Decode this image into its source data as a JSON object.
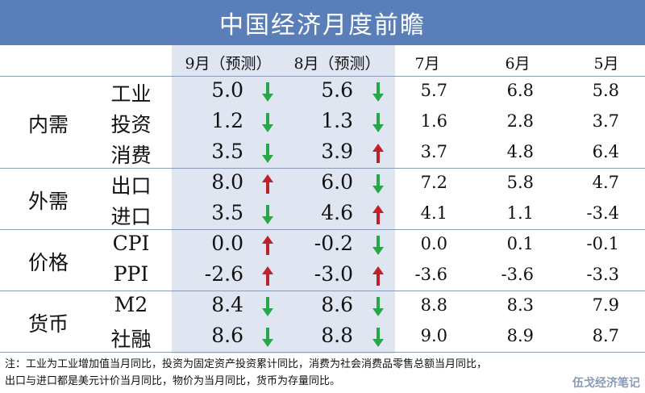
{
  "title": "中国经济月度前瞻",
  "columns": [
    "9月（预测）",
    "8月（预测）",
    "7月",
    "6月",
    "5月"
  ],
  "colors": {
    "header_bg": "#5a7fb8",
    "forecast_bg": "#dfe6f1",
    "up": "#c0202a",
    "down": "#2aa64a",
    "rule": "#8a9bb3"
  },
  "groups": [
    {
      "label": "内需",
      "rows": [
        {
          "name": "工业",
          "sep": "5.0",
          "sep_trend": "down",
          "aug": "5.6",
          "aug_trend": "down",
          "jul": "5.7",
          "jun": "6.8",
          "may": "5.8"
        },
        {
          "name": "投资",
          "sep": "1.2",
          "sep_trend": "down",
          "aug": "1.3",
          "aug_trend": "down",
          "jul": "1.6",
          "jun": "2.8",
          "may": "3.7"
        },
        {
          "name": "消费",
          "sep": "3.5",
          "sep_trend": "down",
          "aug": "3.9",
          "aug_trend": "up",
          "jul": "3.7",
          "jun": "4.8",
          "may": "6.4"
        }
      ]
    },
    {
      "label": "外需",
      "rows": [
        {
          "name": "出口",
          "sep": "8.0",
          "sep_trend": "up",
          "aug": "6.0",
          "aug_trend": "down",
          "jul": "7.2",
          "jun": "5.8",
          "may": "4.7"
        },
        {
          "name": "进口",
          "sep": "3.5",
          "sep_trend": "down",
          "aug": "4.6",
          "aug_trend": "up",
          "jul": "4.1",
          "jun": "1.1",
          "may": "-3.4"
        }
      ]
    },
    {
      "label": "价格",
      "rows": [
        {
          "name": "CPI",
          "sep": "0.0",
          "sep_trend": "up",
          "aug": "-0.2",
          "aug_trend": "down",
          "jul": "0.0",
          "jun": "0.1",
          "may": "-0.1"
        },
        {
          "name": "PPI",
          "sep": "-2.6",
          "sep_trend": "up",
          "aug": "-3.0",
          "aug_trend": "up",
          "jul": "-3.6",
          "jun": "-3.6",
          "may": "-3.3"
        }
      ]
    },
    {
      "label": "货币",
      "rows": [
        {
          "name": "M2",
          "sep": "8.4",
          "sep_trend": "down",
          "aug": "8.6",
          "aug_trend": "down",
          "jul": "8.8",
          "jun": "8.3",
          "may": "7.9"
        },
        {
          "name": "社融",
          "sep": "8.6",
          "sep_trend": "down",
          "aug": "8.8",
          "aug_trend": "down",
          "jul": "9.0",
          "jun": "8.9",
          "may": "8.7"
        }
      ]
    }
  ],
  "footnote_line1": "注：工业为工业增加值当月同比，投资为固定资产投资累计同比，消费为社会消费品零售总额当月同比，",
  "footnote_line2": "出口与进口都是美元计价当月同比，物价为当月同比，货币为存量同比。",
  "watermark": "伍戈经济笔记"
}
